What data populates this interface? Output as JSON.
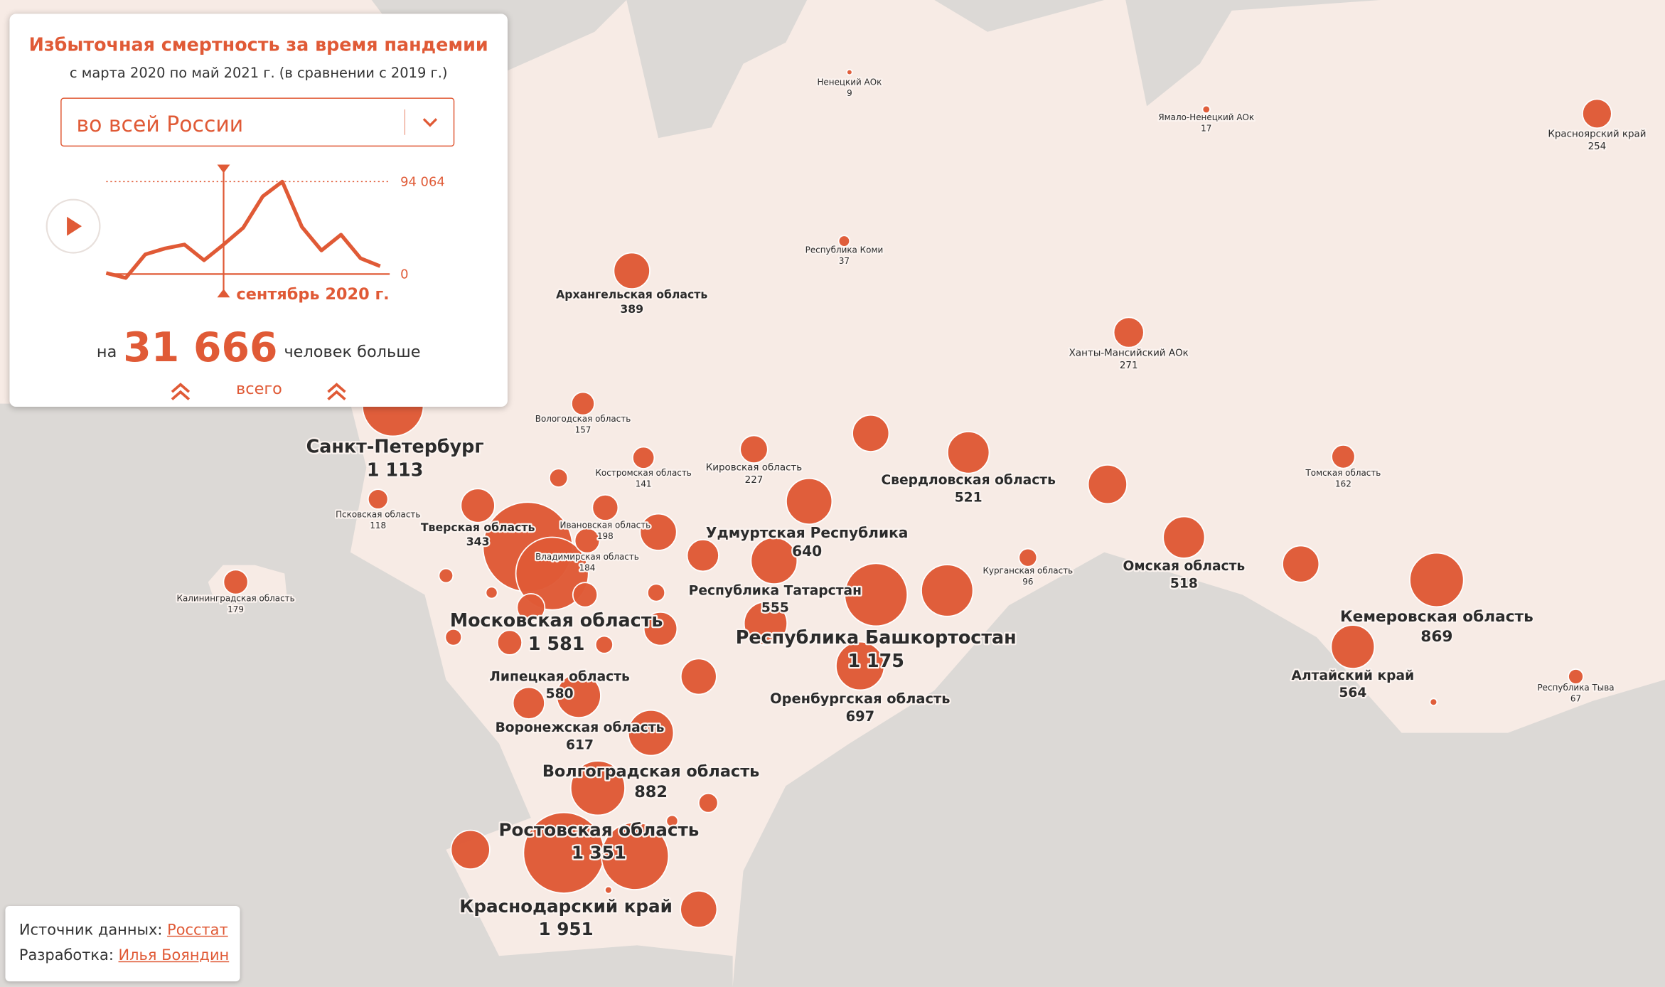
{
  "panel": {
    "title": "Избыточная смертность за время пандемии",
    "subtitle": "с марта 2020 по май 2021 г. (в сравнении с 2019 г.)",
    "dropdown": "во всей России",
    "chart": {
      "type": "line",
      "values": [
        1000,
        -4000,
        20000,
        26000,
        30000,
        14000,
        30000,
        47000,
        79000,
        94064,
        48000,
        24000,
        40000,
        16000,
        8000
      ],
      "ylim": [
        0,
        94064
      ],
      "yticks": [
        {
          "value": 94064,
          "label": "94 064"
        },
        0
      ],
      "current_label": "сентябрь 2020 г."
    },
    "total_prefix": "на",
    "total": "31 666",
    "total_suffix": "человек больше",
    "total_button": "всего"
  },
  "regions": {
    "names": [
      "Ненецкий АОк",
      "Ямало-Ненецкий АОк",
      "Красноярский край",
      "Республика Коми",
      "Архангельская область",
      "Ханты-Мансийский АОк",
      "Вологодская область",
      "Санкт-Петербург",
      "Кировская область",
      "Костромская область",
      "Свердловская область",
      "Томская область",
      "Псковская область",
      "Тверская область",
      "Ивановская область",
      "Удмуртская Республика",
      "Курганская область",
      "Омская область",
      "Владимирская область",
      "Калининградская область",
      "Республика Татарстан",
      "Кемеровская область",
      "Московская область",
      "Республика Башкортостан",
      "Алтайский край",
      "Республика Тыва",
      "Липецкая область",
      "Оренбургская область",
      "Воронежская область",
      "Волгоградская область",
      "Ростовская область",
      "Краснодарский край",
      null,
      null,
      null,
      null,
      null,
      null,
      null,
      null,
      null,
      null,
      null,
      null,
      null,
      null,
      null,
      null,
      null,
      null,
      null,
      null,
      null,
      null,
      null,
      null,
      null,
      null
    ],
    "values": [
      9,
      17,
      254,
      37,
      389,
      271,
      157,
      1113,
      227,
      141,
      521,
      162,
      118,
      343,
      198,
      640,
      96,
      518,
      184,
      179,
      555,
      869,
      1581,
      1175,
      564,
      67,
      580,
      697,
      617,
      882,
      1351,
      1951,
      2400,
      630,
      400,
      450,
      400,
      800,
      400,
      300,
      100,
      60,
      40,
      180,
      230,
      90,
      330,
      180,
      90,
      80,
      300,
      380,
      110,
      40,
      450,
      400,
      15,
      15
    ],
    "value_labels": [
      "9",
      "17",
      "254",
      "37",
      "389",
      "271",
      "157",
      "1 113",
      "227",
      "141",
      "521",
      "162",
      "118",
      "343",
      "198",
      "640",
      "96",
      "518",
      "184",
      "179",
      "555",
      "869",
      "1 581",
      "1 175",
      "564",
      "67",
      "580",
      "697",
      "617",
      "882",
      "1 351",
      "1 951",
      null,
      null,
      null,
      null,
      null,
      null,
      null,
      null,
      null,
      null,
      null,
      null,
      null,
      null,
      null,
      null,
      null,
      null,
      null,
      null,
      null,
      null,
      null,
      null,
      null,
      null
    ]
  },
  "footer": {
    "source_label": "Источник данных:",
    "source": "Росстат",
    "author_label": "Разработка:",
    "author": "Илья Бояндин"
  }
}
